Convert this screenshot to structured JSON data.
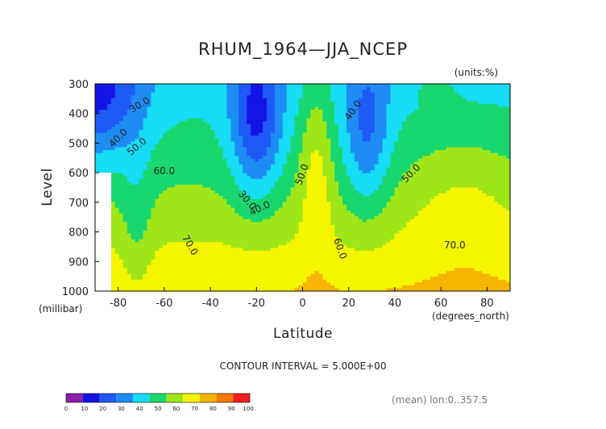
{
  "chart_data": {
    "type": "heatmap",
    "title": "RHUM_1964—JJA_NCEP",
    "units_label": "(units:%)",
    "xlabel": "Latitude",
    "ylabel": "Level",
    "x_units_label": "(degrees_north)",
    "y_units_label": "(millibar)",
    "x_ticks": [
      -80,
      -60,
      -40,
      -20,
      0,
      20,
      40,
      60,
      80
    ],
    "y_ticks": [
      300,
      400,
      500,
      600,
      700,
      800,
      900,
      1000
    ],
    "xlim": [
      -90,
      90
    ],
    "ylim": [
      1000,
      300
    ],
    "contour_interval_text": "CONTOUR INTERVAL = 5.000E+00",
    "footer_text": "(mean) lon:0..357.5",
    "levels": [
      0,
      10,
      20,
      30,
      40,
      50,
      60,
      70,
      80,
      90,
      100
    ],
    "colors": [
      "#8a1fb0",
      "#1414e6",
      "#1e5af5",
      "#1f8cf5",
      "#16dcf5",
      "#18d76f",
      "#9fe619",
      "#f5f500",
      "#f7b400",
      "#f57800",
      "#f51e1e"
    ],
    "contour_labels": [
      {
        "text": "30.0",
        "x": -70,
        "y": 380,
        "rot": -30
      },
      {
        "text": "40.0",
        "x": -79,
        "y": 490,
        "rot": -45
      },
      {
        "text": "50.0",
        "x": -71,
        "y": 520,
        "rot": -40
      },
      {
        "text": "60.0",
        "x": -60,
        "y": 605,
        "rot": 0
      },
      {
        "text": "30.0",
        "x": -25,
        "y": 700,
        "rot": 50
      },
      {
        "text": "40.0",
        "x": -18,
        "y": 730,
        "rot": -25
      },
      {
        "text": "50.0",
        "x": 1,
        "y": 610,
        "rot": -70
      },
      {
        "text": "40.0",
        "x": 23,
        "y": 395,
        "rot": -55
      },
      {
        "text": "50.0",
        "x": 48,
        "y": 610,
        "rot": -45
      },
      {
        "text": "70.0",
        "x": -50,
        "y": 850,
        "rot": 60
      },
      {
        "text": "60.0",
        "x": 15,
        "y": 860,
        "rot": 70
      },
      {
        "text": "70.0",
        "x": 66,
        "y": 855,
        "rot": 0
      }
    ]
  }
}
